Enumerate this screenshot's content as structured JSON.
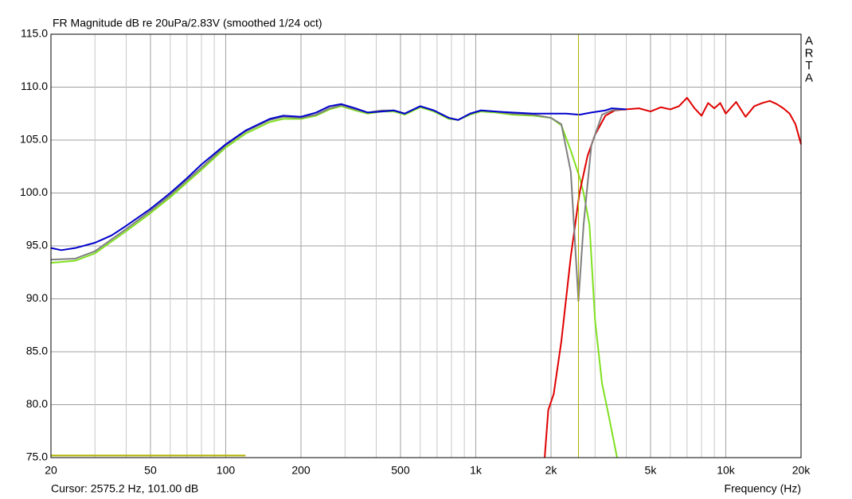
{
  "chart_data": {
    "type": "line",
    "title": "FR Magnitude dB re 20uPa/2.83V (smoothed 1/24 oct)",
    "x_label": "Frequency (Hz)",
    "brand": [
      "A",
      "R",
      "T",
      "A"
    ],
    "cursor_label": "Cursor: 2575.2 Hz, 101.00 dB",
    "cursor_x": 2575.2,
    "cursor_color": "#b0b000",
    "marker_line": {
      "x": [
        20,
        120
      ],
      "y": 75.2,
      "color": "#b0b000"
    },
    "x_log": true,
    "grid": true,
    "xlim": [
      20,
      20000
    ],
    "ylim": [
      75,
      115
    ],
    "xticks": [
      20,
      50,
      100,
      200,
      500,
      {
        "value": 1000,
        "label": "1k"
      },
      {
        "value": 2000,
        "label": "2k"
      },
      {
        "value": 5000,
        "label": "5k"
      },
      {
        "value": 10000,
        "label": "10k"
      },
      {
        "value": 20000,
        "label": "20k"
      }
    ],
    "xgrid": [
      30,
      40,
      60,
      70,
      80,
      90,
      300,
      400,
      600,
      700,
      800,
      900,
      3000,
      4000,
      6000,
      7000,
      8000,
      9000
    ],
    "yticks": [
      {
        "value": 75,
        "label": "75.0"
      },
      {
        "value": 80,
        "label": "80.0"
      },
      {
        "value": 85,
        "label": "85.0"
      },
      {
        "value": 90,
        "label": "90.0"
      },
      {
        "value": 95,
        "label": "95.0"
      },
      {
        "value": 100,
        "label": "100.0"
      },
      {
        "value": 105,
        "label": "105.0"
      },
      {
        "value": 110,
        "label": "110.0"
      },
      {
        "value": 115,
        "label": "115.0"
      }
    ],
    "series": [
      {
        "color": "#80e020",
        "x": [
          20,
          25,
          30,
          40,
          50,
          60,
          70,
          80,
          100,
          120,
          150,
          170,
          200,
          230,
          260,
          290,
          330,
          370,
          420,
          470,
          520,
          600,
          680,
          780,
          850,
          950,
          1050,
          1200,
          1400,
          1700,
          2000,
          2200,
          2400,
          2600,
          2700,
          2850,
          3000,
          3200,
          3400,
          3675
        ],
        "values": [
          93.4,
          93.6,
          94.3,
          96.4,
          98.1,
          99.6,
          101.0,
          102.2,
          104.3,
          105.6,
          106.7,
          107.0,
          107.0,
          107.3,
          107.9,
          108.2,
          107.8,
          107.5,
          107.7,
          107.7,
          107.4,
          108.1,
          107.7,
          107.0,
          106.9,
          107.4,
          107.7,
          107.6,
          107.4,
          107.3,
          107.1,
          106.4,
          104.0,
          101.5,
          100.0,
          97.0,
          88.0,
          82.0,
          79.0,
          75.0
        ]
      },
      {
        "color": "#e00000",
        "x": [
          1887,
          1950,
          2050,
          2200,
          2400,
          2600,
          2800,
          3000,
          3300,
          3600,
          4000,
          4500,
          5000,
          5500,
          6000,
          6500,
          7000,
          7500,
          8000,
          8500,
          9000,
          9500,
          10000,
          11000,
          12000,
          13000,
          14000,
          15000,
          16000,
          17000,
          18000,
          19000,
          20000
        ],
        "values": [
          75.0,
          79.5,
          81.0,
          86.0,
          94.0,
          100.0,
          103.5,
          105.5,
          107.3,
          107.8,
          107.9,
          108.0,
          107.7,
          108.1,
          107.9,
          108.2,
          109.0,
          108.0,
          107.3,
          108.5,
          108.0,
          108.5,
          107.5,
          108.6,
          107.2,
          108.2,
          108.5,
          108.7,
          108.4,
          108.0,
          107.5,
          106.5,
          104.6
        ]
      },
      {
        "color": "#808080",
        "x": [
          20,
          25,
          30,
          40,
          50,
          60,
          70,
          80,
          100,
          120,
          150,
          170,
          200,
          230,
          260,
          290,
          330,
          370,
          420,
          470,
          520,
          600,
          680,
          780,
          850,
          950,
          1050,
          1200,
          1400,
          1700,
          2000,
          2200,
          2400,
          2575,
          2700,
          2900,
          3200,
          3500,
          3900
        ],
        "values": [
          93.7,
          93.8,
          94.5,
          96.6,
          98.3,
          99.8,
          101.2,
          102.4,
          104.5,
          105.8,
          106.9,
          107.2,
          107.1,
          107.4,
          108.0,
          108.3,
          107.9,
          107.6,
          107.8,
          107.8,
          107.5,
          108.2,
          107.8,
          107.1,
          106.9,
          107.5,
          107.8,
          107.7,
          107.5,
          107.4,
          107.1,
          106.5,
          102.0,
          89.8,
          97.0,
          104.5,
          107.4,
          107.8,
          107.9
        ]
      },
      {
        "color": "#0000cc",
        "x": [
          20,
          22,
          25,
          30,
          35,
          40,
          50,
          60,
          70,
          80,
          90,
          100,
          120,
          150,
          170,
          200,
          230,
          260,
          290,
          330,
          370,
          420,
          470,
          520,
          600,
          680,
          780,
          850,
          950,
          1050,
          1200,
          1400,
          1700,
          2000,
          2300,
          2600,
          2900,
          3300,
          3500,
          4000
        ],
        "values": [
          94.8,
          94.6,
          94.8,
          95.3,
          96.0,
          96.9,
          98.5,
          100.0,
          101.4,
          102.7,
          103.7,
          104.6,
          105.9,
          107.0,
          107.3,
          107.2,
          107.6,
          108.2,
          108.4,
          108.0,
          107.6,
          107.7,
          107.8,
          107.5,
          108.2,
          107.8,
          107.1,
          106.9,
          107.5,
          107.8,
          107.7,
          107.6,
          107.5,
          107.5,
          107.5,
          107.4,
          107.6,
          107.8,
          108.0,
          107.9
        ]
      }
    ]
  }
}
